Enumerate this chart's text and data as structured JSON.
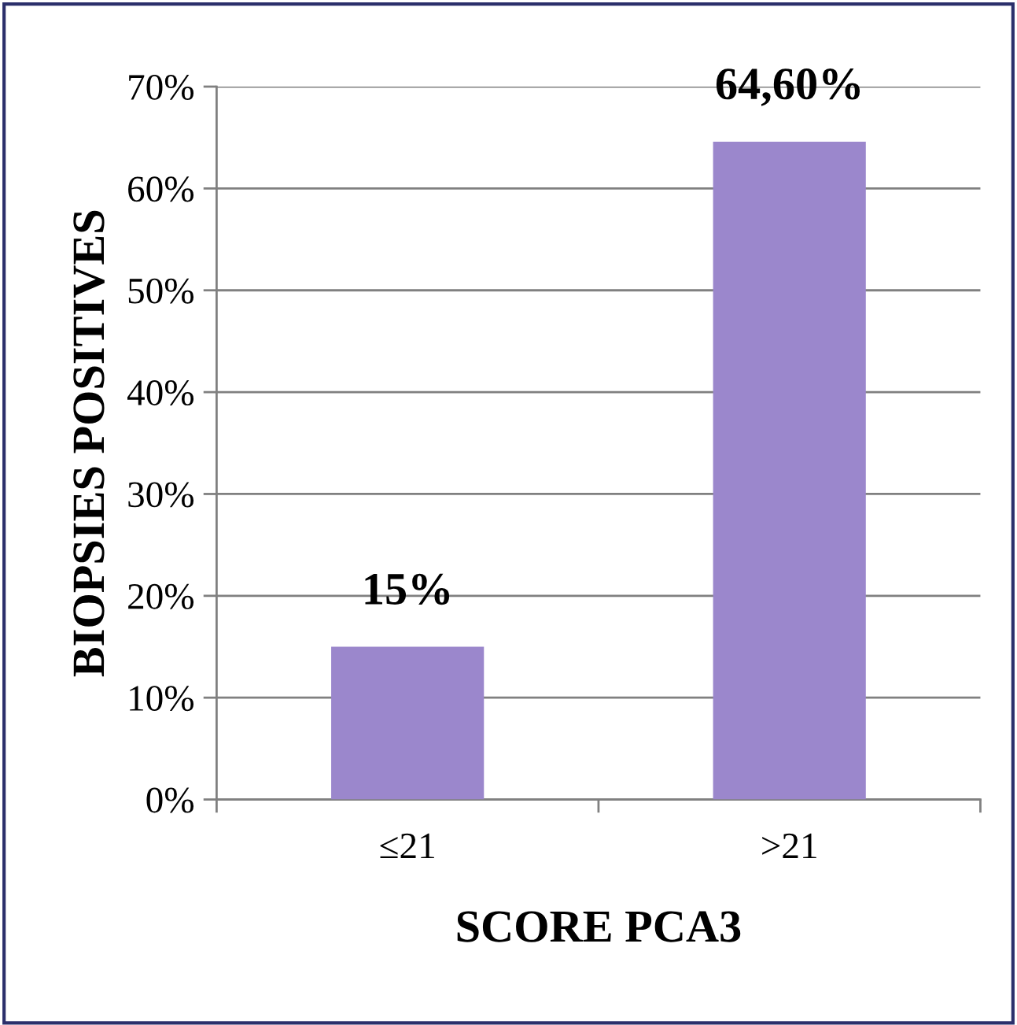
{
  "chart_data": {
    "type": "bar",
    "xlabel": "SCORE PCA3",
    "ylabel": "BIOPSIES POSITIVES",
    "categories": [
      "≤21",
      ">21"
    ],
    "values": [
      15,
      64.6
    ],
    "color": "#9b87cc",
    "value_labels": [
      "15%",
      "64,60%"
    ],
    "ylim": [
      0,
      70
    ],
    "yticks": [
      {
        "value": 0,
        "label": "0%"
      },
      {
        "value": 10,
        "label": "10%"
      },
      {
        "value": 20,
        "label": "20%"
      },
      {
        "value": 30,
        "label": "30%"
      },
      {
        "value": 40,
        "label": "40%"
      },
      {
        "value": 50,
        "label": "50%"
      },
      {
        "value": 60,
        "label": "60%"
      },
      {
        "value": 70,
        "label": "70%"
      }
    ],
    "grid": "y"
  }
}
